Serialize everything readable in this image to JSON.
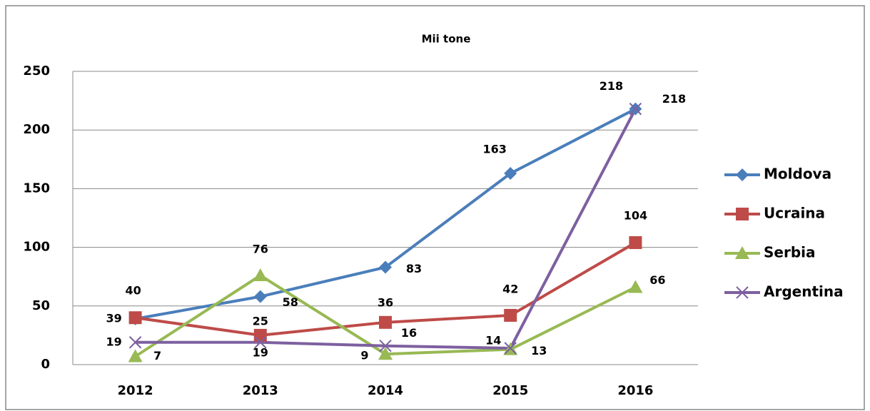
{
  "chart_data": {
    "type": "line",
    "title": "Mii tone",
    "categories": [
      "2012",
      "2013",
      "2014",
      "2015",
      "2016"
    ],
    "series": [
      {
        "name": "Moldova",
        "color": "#4a7ebb",
        "marker": "diamond",
        "values": [
          39,
          58,
          83,
          163,
          218
        ]
      },
      {
        "name": "Ucraina",
        "color": "#be4b48",
        "marker": "square",
        "values": [
          40,
          25,
          36,
          42,
          104
        ]
      },
      {
        "name": "Serbia",
        "color": "#98b954",
        "marker": "triangle",
        "values": [
          7,
          76,
          9,
          13,
          66
        ]
      },
      {
        "name": "Argentina",
        "color": "#7d60a0",
        "marker": "x",
        "values": [
          19,
          19,
          16,
          14,
          218
        ]
      }
    ],
    "ylim": [
      0,
      250
    ],
    "yticks": [
      0,
      50,
      100,
      150,
      200,
      250
    ],
    "grid": true,
    "legend": "right"
  }
}
